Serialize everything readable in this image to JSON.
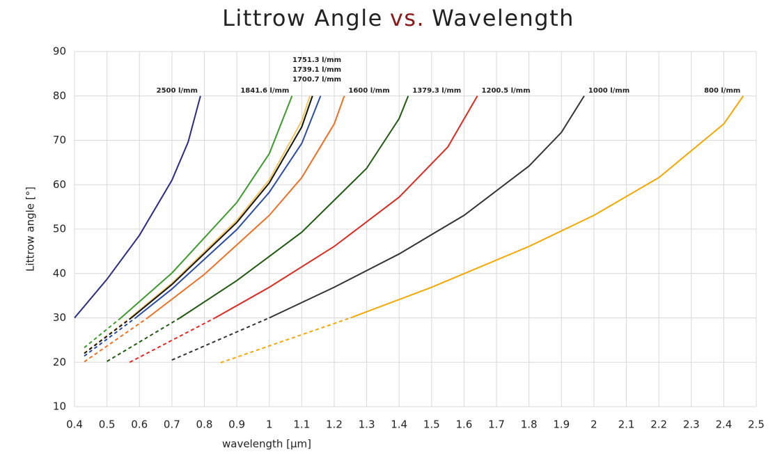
{
  "chart_data": {
    "type": "line",
    "title_parts": [
      "Littrow Angle",
      "vs.",
      "Wavelength"
    ],
    "title_colors": [
      "#222222",
      "#8b1a1a",
      "#222222"
    ],
    "x_label": "wavelength [µm]",
    "y_label": "Littrow angle [°]",
    "xlim": [
      0.4,
      2.5
    ],
    "xticks": [
      0.4,
      0.5,
      0.6,
      0.7,
      0.8,
      0.9,
      1,
      1.1,
      1.2,
      1.3,
      1.4,
      1.5,
      1.6,
      1.7,
      1.8,
      1.9,
      2,
      2.1,
      2.2,
      2.3,
      2.4,
      2.5
    ],
    "ylim": [
      10,
      90
    ],
    "yticks": [
      10,
      20,
      30,
      40,
      50,
      60,
      70,
      80,
      90
    ],
    "grid": true,
    "series": [
      {
        "name": "2500 l/mm",
        "color": "#2b2b85",
        "solid": {
          "x": [
            0.4,
            0.5,
            0.6,
            0.7,
            0.75,
            0.788
          ],
          "values": [
            30,
            38.7,
            48.6,
            61,
            69.6,
            80
          ]
        }
      },
      {
        "name": "1841.6 l/mm",
        "color": "#3d9a2c",
        "dashed": {
          "x": [
            0.43,
            0.543
          ],
          "values": [
            23.3,
            30
          ]
        },
        "solid": {
          "x": [
            0.543,
            0.7,
            0.9,
            1,
            1.07
          ],
          "values": [
            30,
            40.1,
            56,
            67,
            80
          ]
        }
      },
      {
        "name": "1751.3 l/mm",
        "color": "#f2c75c",
        "dashed": {
          "x": [
            0.43,
            0.571
          ],
          "values": [
            22.1,
            30
          ]
        },
        "solid": {
          "x": [
            0.571,
            0.7,
            0.9,
            1,
            1.1,
            1.125
          ],
          "values": [
            30,
            37.8,
            52,
            61.1,
            74.4,
            80
          ]
        }
      },
      {
        "name": "1739.1 l/mm",
        "color": "#111111",
        "dashed": {
          "x": [
            0.43,
            0.575
          ],
          "values": [
            22,
            30
          ]
        },
        "solid": {
          "x": [
            0.575,
            0.7,
            0.9,
            1,
            1.1,
            1.133
          ],
          "values": [
            30,
            37.5,
            51.5,
            60.4,
            73,
            80
          ]
        }
      },
      {
        "name": "1700.7 l/mm",
        "color": "#2a4aa8",
        "dashed": {
          "x": [
            0.43,
            0.588
          ],
          "values": [
            21.4,
            30
          ]
        },
        "solid": {
          "x": [
            0.588,
            0.7,
            0.9,
            1,
            1.1,
            1.158
          ],
          "values": [
            30,
            36.5,
            49.9,
            58.3,
            69.3,
            80
          ]
        }
      },
      {
        "name": "1600 l/mm",
        "color": "#f07022",
        "dashed": {
          "x": [
            0.43,
            0.625
          ],
          "values": [
            20.1,
            30
          ]
        },
        "solid": {
          "x": [
            0.625,
            0.8,
            1,
            1.1,
            1.2,
            1.231
          ],
          "values": [
            30,
            39.8,
            53.1,
            61.6,
            73.7,
            80
          ]
        }
      },
      {
        "name": "1379.3 l/mm",
        "color": "#1f5a10",
        "dashed": {
          "x": [
            0.5,
            0.725
          ],
          "values": [
            20.2,
            30
          ]
        },
        "solid": {
          "x": [
            0.725,
            0.9,
            1.1,
            1.3,
            1.4,
            1.428
          ],
          "values": [
            30,
            38.4,
            49.3,
            63.7,
            74.9,
            80
          ]
        }
      },
      {
        "name": "1200.5 l/mm",
        "color": "#e02a20",
        "dashed": {
          "x": [
            0.57,
            0.833
          ],
          "values": [
            20,
            30
          ]
        },
        "solid": {
          "x": [
            0.833,
            1,
            1.2,
            1.4,
            1.55,
            1.641
          ],
          "values": [
            30,
            36.9,
            46.1,
            57.2,
            68.5,
            80
          ]
        }
      },
      {
        "name": "1000 l/mm",
        "color": "#333333",
        "dashed": {
          "x": [
            0.7,
            1
          ],
          "values": [
            20.5,
            30
          ]
        },
        "solid": {
          "x": [
            1,
            1.2,
            1.4,
            1.6,
            1.8,
            1.9,
            1.97
          ],
          "values": [
            30,
            36.9,
            44.4,
            53.1,
            64.2,
            71.8,
            80
          ]
        }
      },
      {
        "name": "800 l/mm",
        "color": "#f5a800",
        "dashed": {
          "x": [
            0.85,
            1.25
          ],
          "values": [
            19.9,
            30
          ]
        },
        "solid": {
          "x": [
            1.25,
            1.5,
            1.8,
            2,
            2.2,
            2.4,
            2.46
          ],
          "values": [
            30,
            36.9,
            46.1,
            53.1,
            61.6,
            73.7,
            80
          ]
        }
      }
    ]
  }
}
